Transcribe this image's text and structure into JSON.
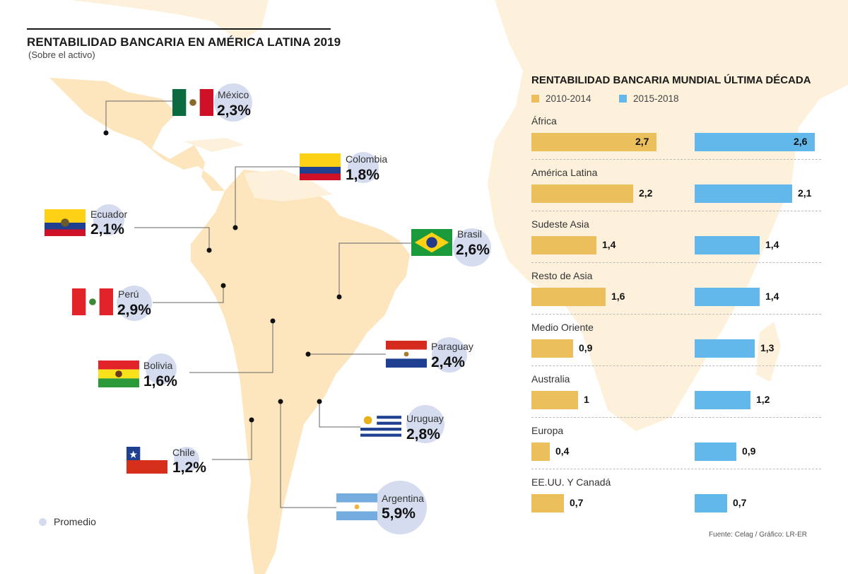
{
  "title": "RENTABILIDAD BANCARIA EN AMÉRICA LATINA 2019",
  "subtitle": "(Sobre el activo)",
  "map_legend": "Promedio",
  "colors": {
    "land": "#fde6bd",
    "land_faint": "#fdf1dc",
    "average_circle": "#d5dcef",
    "series_2010_2014": "#ebc05c",
    "series_2015_2018": "#62b8ea"
  },
  "countries": [
    {
      "name": "México",
      "value": "2,3%",
      "flag": "mexico"
    },
    {
      "name": "Colombia",
      "value": "1,8%",
      "flag": "colombia"
    },
    {
      "name": "Ecuador",
      "value": "2,1%",
      "flag": "ecuador"
    },
    {
      "name": "Brasil",
      "value": "2,6%",
      "flag": "brasil"
    },
    {
      "name": "Perú",
      "value": "2,9%",
      "flag": "peru"
    },
    {
      "name": "Paraguay",
      "value": "2,4%",
      "flag": "paraguay"
    },
    {
      "name": "Bolivia",
      "value": "1,6%",
      "flag": "bolivia"
    },
    {
      "name": "Uruguay",
      "value": "2,8%",
      "flag": "uruguay"
    },
    {
      "name": "Chile",
      "value": "1,2%",
      "flag": "chile"
    },
    {
      "name": "Argentina",
      "value": "5,9%",
      "flag": "argentina"
    }
  ],
  "source": "Fuente: Celag / Gráfico: LR-ER",
  "chart_data": [
    {
      "type": "table",
      "title": "RENTABILIDAD BANCARIA EN AMÉRICA LATINA 2019",
      "subtitle": "(Sobre el activo)",
      "categories": [
        "México",
        "Colombia",
        "Ecuador",
        "Brasil",
        "Perú",
        "Paraguay",
        "Bolivia",
        "Uruguay",
        "Chile",
        "Argentina"
      ],
      "values": [
        2.3,
        1.8,
        2.1,
        2.6,
        2.9,
        2.4,
        1.6,
        2.8,
        1.2,
        5.9
      ],
      "unit": "%",
      "legend": [
        "Promedio"
      ]
    },
    {
      "type": "bar",
      "orientation": "horizontal",
      "title": "RENTABILIDAD BANCARIA MUNDIAL ÚLTIMA DÉCADA",
      "categories": [
        "África",
        "América Latina",
        "Sudeste Asia",
        "Resto de Asia",
        "Medio Oriente",
        "Australia",
        "Europa",
        "EE.UU. Y Canadá"
      ],
      "series": [
        {
          "name": "2010-2014",
          "values": [
            2.7,
            2.2,
            1.4,
            1.6,
            0.9,
            1,
            0.4,
            0.7
          ],
          "labels": [
            "2,7",
            "2,2",
            "1,4",
            "1,6",
            "0,9",
            "1",
            "0,4",
            "0,7"
          ]
        },
        {
          "name": "2015-2018",
          "values": [
            2.6,
            2.1,
            1.4,
            1.4,
            1.3,
            1.2,
            0.9,
            0.7
          ],
          "labels": [
            "2,6",
            "2,1",
            "1,4",
            "1,4",
            "1,3",
            "1,2",
            "0,9",
            "0,7"
          ]
        }
      ],
      "xlim": [
        0,
        2.7
      ],
      "grid": false,
      "legend_position": "top-left",
      "xlabel": "",
      "ylabel": ""
    }
  ]
}
